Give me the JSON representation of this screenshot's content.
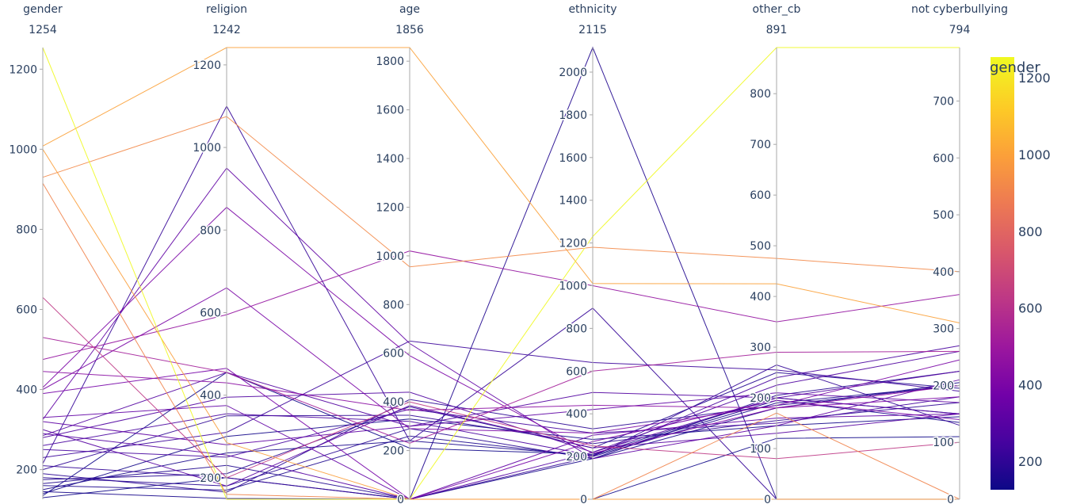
{
  "chart_data": {
    "type": "parcoords",
    "color_by": "gender",
    "dimensions": [
      {
        "label": "gender",
        "max_label": "1254",
        "range": [
          126,
          1254
        ],
        "ticks": [
          200,
          400,
          600,
          800,
          1000,
          1200
        ]
      },
      {
        "label": "religion",
        "max_label": "1242",
        "range": [
          148,
          1242
        ],
        "ticks": [
          200,
          400,
          600,
          800,
          1000,
          1200
        ]
      },
      {
        "label": "age",
        "max_label": "1856",
        "range": [
          0,
          1856
        ],
        "ticks": [
          0,
          200,
          400,
          600,
          800,
          1000,
          1200,
          1400,
          1600,
          1800
        ]
      },
      {
        "label": "ethnicity",
        "max_label": "2115",
        "range": [
          0,
          2115
        ],
        "ticks": [
          0,
          200,
          400,
          600,
          800,
          1000,
          1200,
          1400,
          1600,
          1800,
          2000
        ]
      },
      {
        "label": "other_cb",
        "max_label": "891",
        "range": [
          0,
          891
        ],
        "ticks": [
          0,
          100,
          200,
          300,
          400,
          500,
          600,
          700,
          800
        ]
      },
      {
        "label": "not cyberbullying",
        "max_label": "794",
        "range": [
          0,
          794
        ],
        "ticks": [
          0,
          100,
          200,
          300,
          400,
          500,
          600,
          700
        ]
      }
    ],
    "colorbar": {
      "title": "gender",
      "ticks": [
        200,
        400,
        600,
        800,
        1000,
        1200
      ],
      "range": [
        126,
        1254
      ],
      "colorscale": [
        "#0d0887",
        "#46039f",
        "#7201a8",
        "#9c179e",
        "#bd3786",
        "#d8576b",
        "#ed7953",
        "#fb9f3a",
        "#fdca26",
        "#f0f921"
      ]
    },
    "rows": [
      [
        1254,
        148,
        0,
        1230,
        891,
        794
      ],
      [
        1008,
        1242,
        1856,
        1010,
        425,
        310
      ],
      [
        930,
        1075,
        955,
        1180,
        475,
        400
      ],
      [
        1000,
        285,
        0,
        0,
        0,
        0
      ],
      [
        915,
        160,
        0,
        0,
        170,
        0
      ],
      [
        630,
        200,
        400,
        250,
        80,
        100
      ],
      [
        530,
        455,
        230,
        600,
        290,
        260
      ],
      [
        475,
        595,
        1020,
        1000,
        350,
        360
      ],
      [
        445,
        430,
        365,
        440,
        180,
        200
      ],
      [
        400,
        660,
        290,
        310,
        185,
        245
      ],
      [
        405,
        855,
        590,
        215,
        180,
        180
      ],
      [
        390,
        465,
        0,
        270,
        195,
        140
      ],
      [
        330,
        375,
        0,
        300,
        160,
        150
      ],
      [
        325,
        950,
        640,
        190,
        145,
        210
      ],
      [
        320,
        280,
        300,
        420,
        210,
        170
      ],
      [
        300,
        180,
        385,
        240,
        130,
        150
      ],
      [
        290,
        255,
        0,
        220,
        200,
        150
      ],
      [
        285,
        455,
        300,
        500,
        200,
        225
      ],
      [
        280,
        395,
        440,
        220,
        225,
        260
      ],
      [
        260,
        355,
        320,
        205,
        240,
        270
      ],
      [
        250,
        250,
        370,
        310,
        150,
        180
      ],
      [
        230,
        310,
        650,
        640,
        255,
        190
      ],
      [
        215,
        1100,
        240,
        895,
        0,
        0
      ],
      [
        210,
        200,
        0,
        200,
        265,
        130
      ],
      [
        200,
        350,
        345,
        260,
        155,
        170
      ],
      [
        190,
        165,
        410,
        330,
        185,
        200
      ],
      [
        180,
        180,
        290,
        190,
        205,
        225
      ],
      [
        175,
        210,
        380,
        240,
        250,
        195
      ],
      [
        165,
        230,
        0,
        2115,
        0,
        0
      ],
      [
        160,
        170,
        260,
        200,
        190,
        200
      ],
      [
        150,
        260,
        240,
        205,
        195,
        135
      ],
      [
        145,
        150,
        0,
        190,
        180,
        205
      ],
      [
        140,
        300,
        330,
        280,
        145,
        145
      ],
      [
        135,
        455,
        210,
        210,
        200,
        150
      ],
      [
        130,
        200,
        0,
        0,
        120,
        110
      ]
    ]
  }
}
